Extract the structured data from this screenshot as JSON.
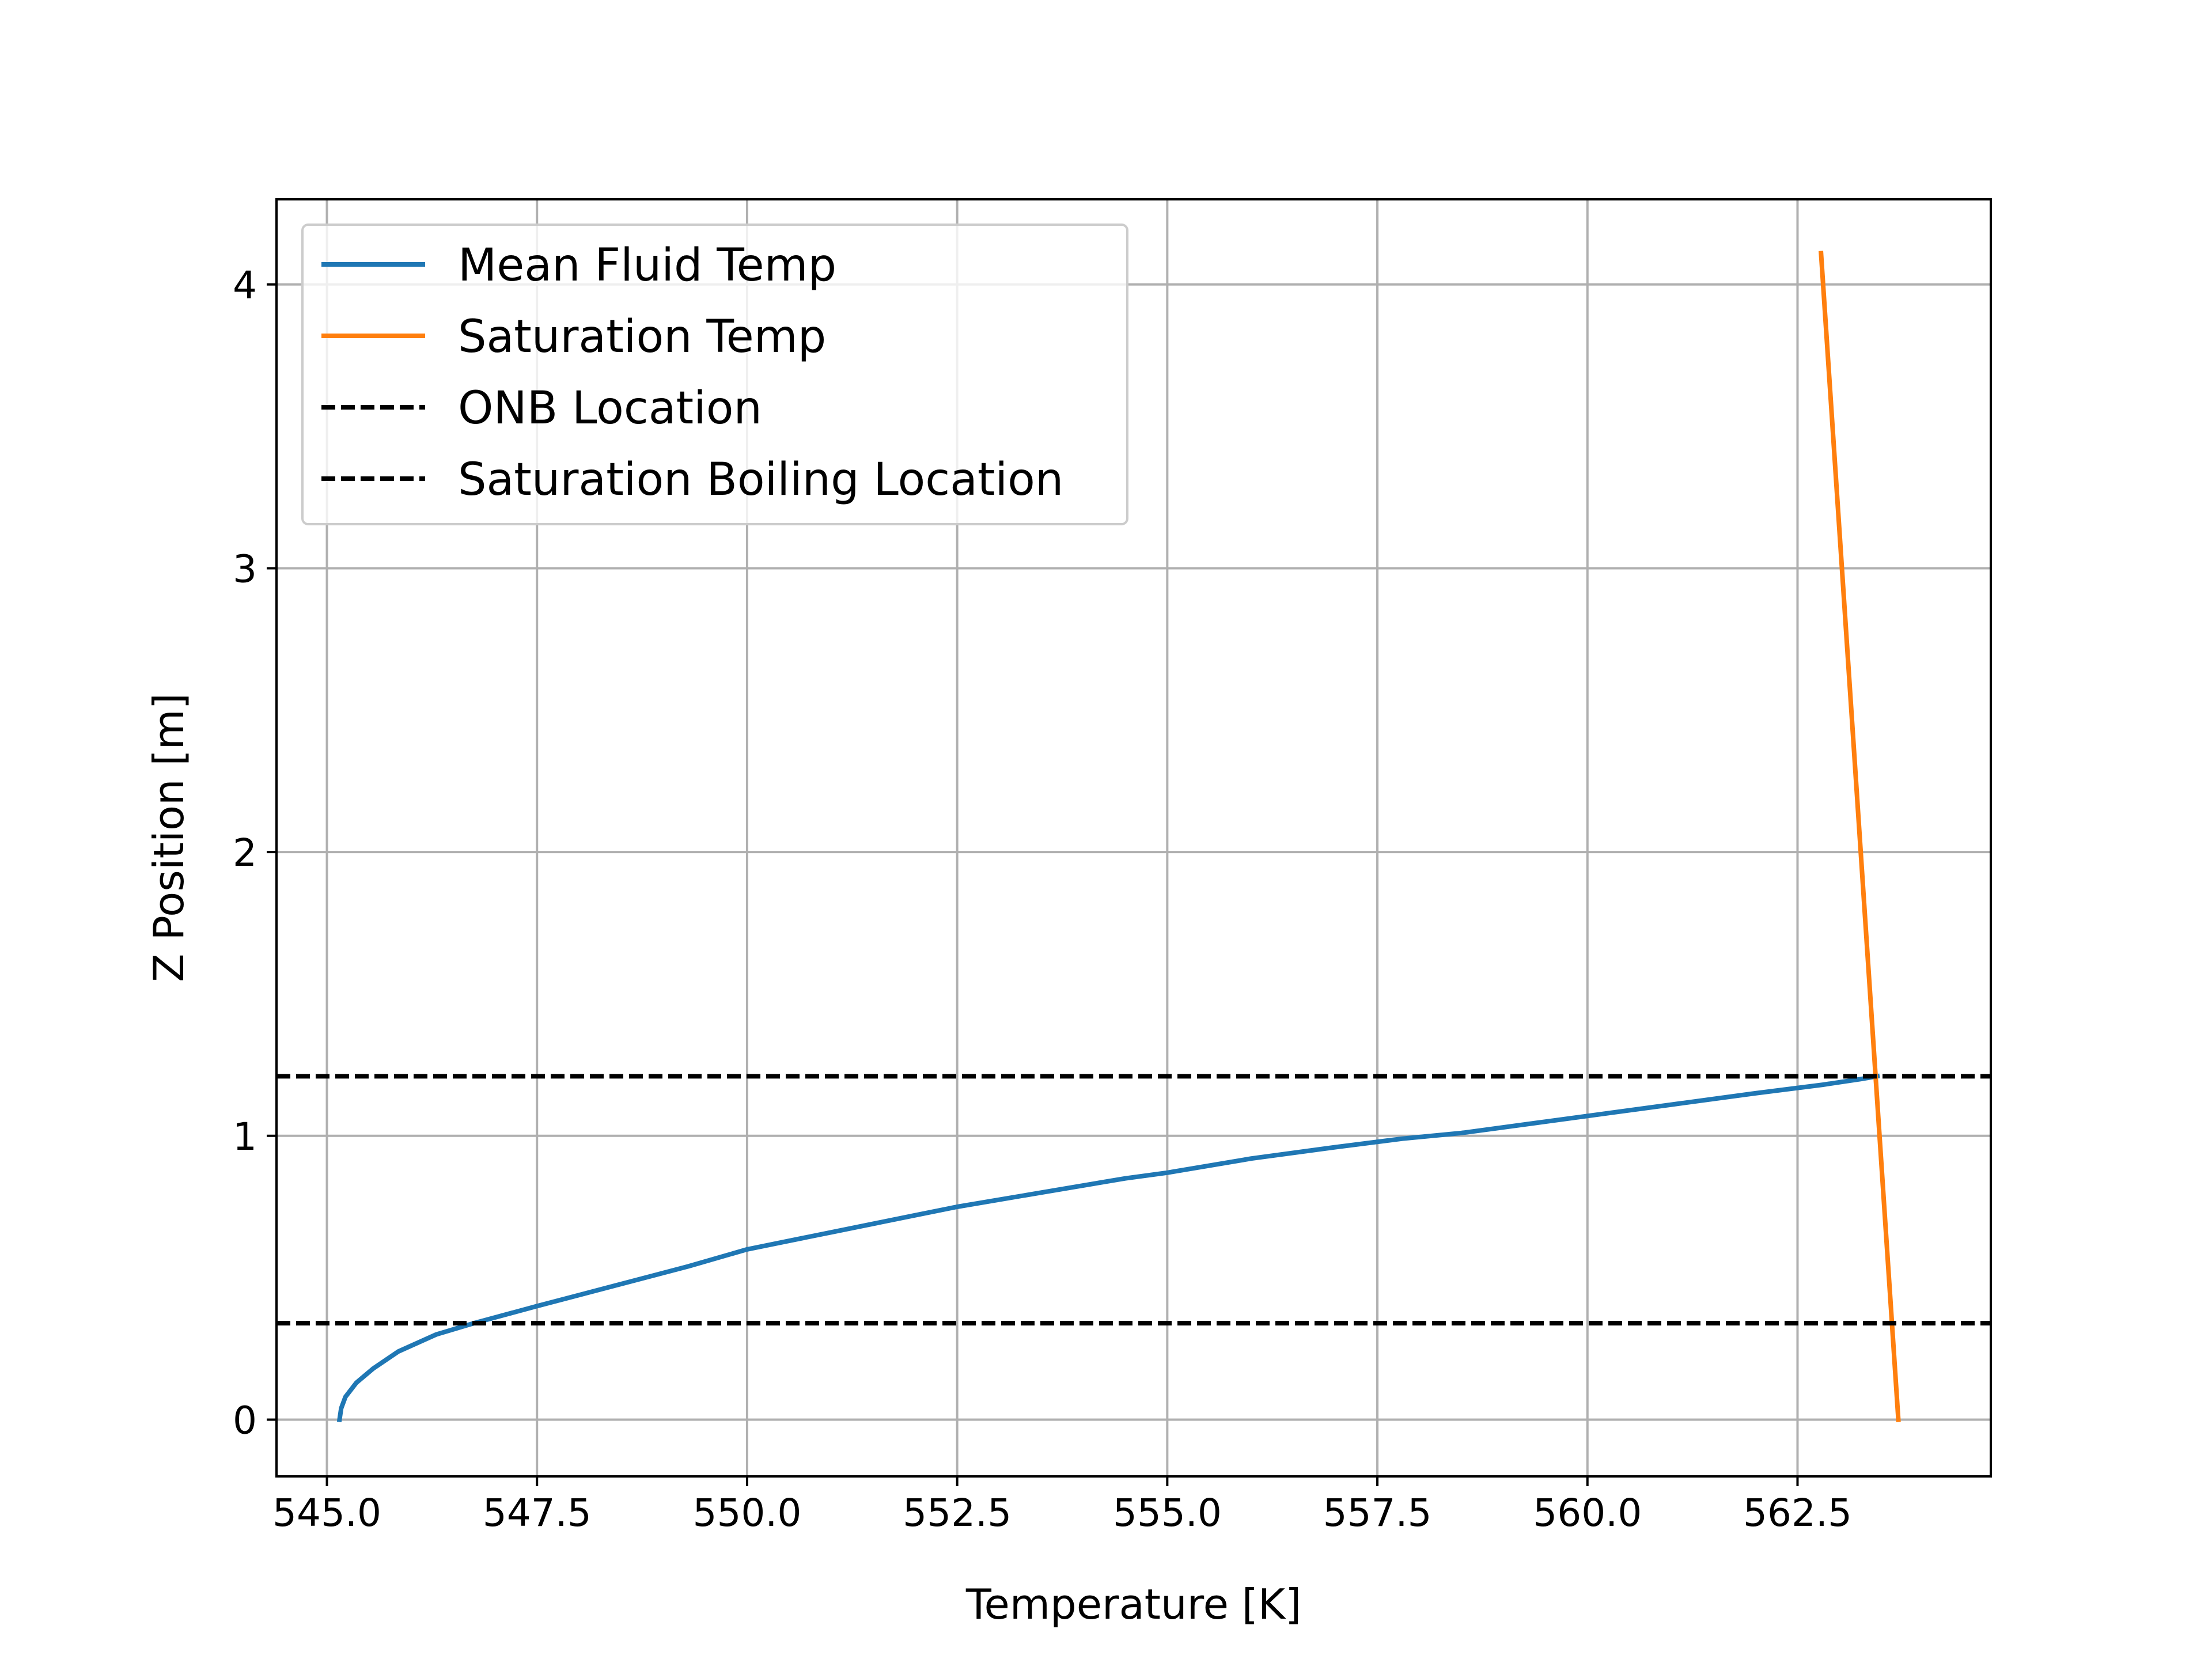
{
  "chart_data": {
    "type": "line",
    "title": "",
    "xlabel": "Temperature [K]",
    "ylabel": "Z Position [m]",
    "xlim": [
      544.4,
      564.8
    ],
    "ylim": [
      -0.2,
      4.3
    ],
    "x_ticks": [
      545.0,
      547.5,
      550.0,
      552.5,
      555.0,
      557.5,
      560.0,
      562.5
    ],
    "x_tick_labels": [
      "545.0",
      "547.5",
      "550.0",
      "552.5",
      "555.0",
      "557.5",
      "560.0",
      "562.5"
    ],
    "y_ticks": [
      0,
      1,
      2,
      3,
      4
    ],
    "y_tick_labels": [
      "0",
      "1",
      "2",
      "3",
      "4"
    ],
    "grid": true,
    "legend_position": "top-left",
    "series": [
      {
        "name": "Mean Fluid Temp",
        "color": "#1f77b4",
        "style": "solid",
        "x": [
          545.15,
          545.17,
          545.22,
          545.35,
          545.55,
          545.85,
          546.3,
          546.75,
          547.5,
          548.4,
          549.3,
          550.0,
          551.0,
          552.0,
          552.5,
          553.5,
          554.5,
          555.0,
          556.0,
          557.0,
          557.8,
          558.5,
          559.5,
          560.0,
          561.0,
          562.0,
          562.8,
          563.25,
          563.45
        ],
        "y": [
          0.0,
          0.04,
          0.08,
          0.13,
          0.18,
          0.24,
          0.3,
          0.34,
          0.4,
          0.47,
          0.54,
          0.6,
          0.66,
          0.72,
          0.75,
          0.8,
          0.85,
          0.87,
          0.92,
          0.96,
          0.99,
          1.01,
          1.05,
          1.07,
          1.11,
          1.15,
          1.18,
          1.2,
          1.21
        ]
      },
      {
        "name": "Saturation Temp",
        "color": "#ff7f0e",
        "style": "solid",
        "x": [
          563.7,
          562.78
        ],
        "y": [
          0.0,
          4.11
        ]
      },
      {
        "name": "ONB Location",
        "color": "#000000",
        "style": "dashed",
        "hline": 0.34
      },
      {
        "name": "Saturation Boiling Location",
        "color": "#000000",
        "style": "dashed",
        "hline": 1.21
      }
    ]
  }
}
